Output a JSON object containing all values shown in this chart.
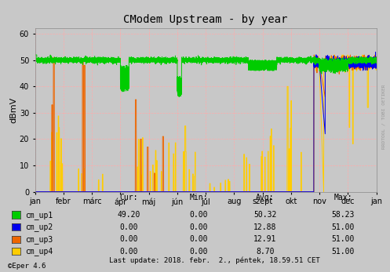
{
  "title": "CModem Upstream - by year",
  "ylabel": "dBmV",
  "bg_color": "#c8c8c8",
  "ylim": [
    0,
    62
  ],
  "yticks": [
    0,
    10,
    20,
    30,
    40,
    50,
    60
  ],
  "months": [
    "jan",
    "febr",
    "márc",
    "ápr",
    "máj",
    "jún",
    "júl",
    "aug",
    "szept",
    "okt",
    "nov",
    "dec",
    "jan"
  ],
  "watermark": "RRDTOOL / TOBI OETIKER",
  "legend_items": [
    {
      "label": "cm_up1",
      "color": "#00cc00"
    },
    {
      "label": "cm_up2",
      "color": "#0000ee"
    },
    {
      "label": "cm_up3",
      "color": "#ee6600"
    },
    {
      "label": "cm_up4",
      "color": "#ffcc00"
    }
  ],
  "stats": {
    "headers": [
      "Cur:",
      "Min:",
      "Avg:",
      "Max:"
    ],
    "rows": [
      [
        "49.20",
        "0.00",
        "50.32",
        "58.23"
      ],
      [
        "0.00",
        "0.00",
        "12.88",
        "51.00"
      ],
      [
        "0.00",
        "0.00",
        "12.91",
        "51.00"
      ],
      [
        "0.00",
        "0.00",
        "8.70",
        "51.00"
      ]
    ]
  },
  "footer_left": "©Eper 4.6",
  "footer_right": "Last update: 2018. febr.  2., péntek, 18.59.51 CET"
}
